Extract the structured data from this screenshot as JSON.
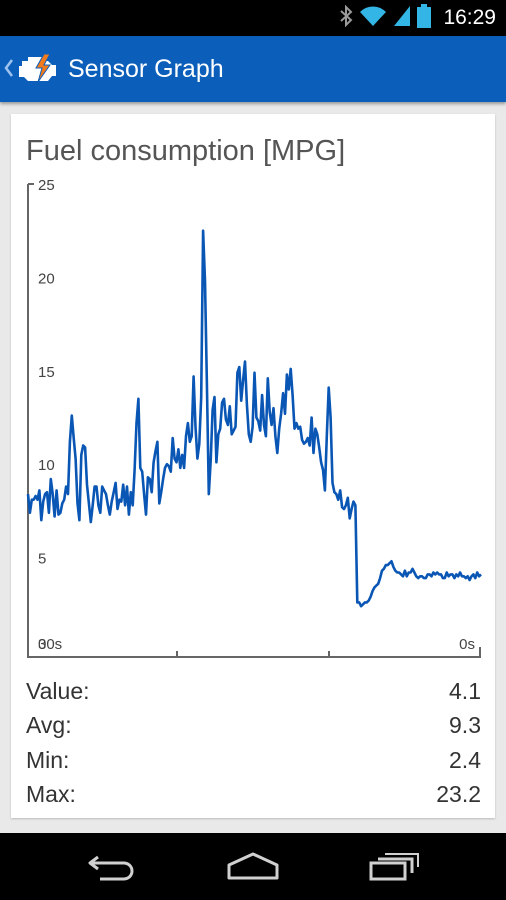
{
  "status_bar": {
    "time": "16:29",
    "icons": [
      "bluetooth-icon",
      "wifi-icon",
      "signal-icon",
      "battery-icon"
    ]
  },
  "action_bar": {
    "title": "Sensor Graph",
    "icon": "check-engine-icon"
  },
  "card": {
    "title": "Fuel consumption [MPG]"
  },
  "chart_data": {
    "type": "line",
    "title": "Fuel consumption [MPG]",
    "ylim": [
      0,
      25
    ],
    "yticks": [
      "0",
      "5",
      "10",
      "15",
      "20",
      "25"
    ],
    "xlim": [
      0,
      30
    ],
    "xtick_labels": [
      "30s",
      "0s"
    ],
    "color": "#0a56b5",
    "series": [
      {
        "values": [
          8.4,
          7.4,
          8.1,
          8.1,
          8.3,
          8.1,
          8.6,
          7.0,
          8.0,
          8.4,
          8.5,
          7.4,
          9.2,
          8.4,
          7.2,
          8.6,
          7.3,
          7.4,
          7.9,
          8.1,
          8.8,
          8.4,
          11.2,
          12.6,
          11.4,
          10.3,
          7.9,
          7.0,
          10.5,
          11.0,
          10.9,
          8.9,
          7.9,
          6.9,
          7.8,
          8.8,
          8.8,
          7.8,
          7.4,
          8.8,
          8.6,
          8.4,
          7.8,
          7.3,
          8.0,
          8.5,
          9.0,
          7.6,
          8.1,
          8.0,
          8.9,
          7.8,
          8.8,
          7.3,
          8.5,
          7.8,
          9.7,
          12.2,
          13.5,
          9.8,
          9.6,
          8.4,
          7.3,
          9.3,
          9.2,
          8.5,
          10.1,
          10.7,
          11.2,
          7.9,
          8.5,
          9.2,
          9.8,
          10.0,
          9.9,
          9.6,
          11.4,
          10.3,
          10.1,
          10.8,
          9.8,
          10.5,
          9.8,
          11.5,
          12.2,
          11.2,
          11.5,
          14.7,
          12.0,
          10.3,
          11.1,
          13.6,
          22.5,
          19.8,
          14.3,
          8.4,
          10.2,
          12.9,
          13.6,
          10.1,
          11.6,
          11.9,
          13.3,
          13.5,
          12.4,
          12.1,
          13.1,
          11.6,
          11.8,
          12.0,
          14.9,
          15.2,
          13.4,
          14.5,
          15.5,
          13.2,
          11.6,
          11.2,
          12.0,
          14.9,
          12.5,
          12.3,
          11.8,
          13.7,
          12.1,
          11.5,
          14.6,
          12.8,
          12.1,
          13.0,
          11.5,
          10.6,
          11.9,
          12.7,
          13.8,
          12.7,
          14.8,
          14.0,
          15.1,
          13.7,
          11.9,
          12.2,
          11.9,
          12.0,
          11.3,
          11.1,
          11.2,
          11.4,
          11.0,
          12.5,
          10.6,
          11.9,
          11.6,
          10.9,
          10.1,
          9.7,
          8.6,
          11.5,
          14.1,
          12.5,
          9.0,
          8.5,
          8.4,
          8.1,
          8.6,
          7.7,
          7.6,
          7.8,
          8.2,
          7.1,
          7.6,
          8.0,
          7.8,
          2.6,
          2.6,
          2.4,
          2.5,
          2.6,
          2.6,
          2.7,
          2.9,
          3.2,
          3.4,
          3.5,
          3.6,
          3.9,
          4.3,
          4.4,
          4.6,
          4.6,
          4.7,
          4.8,
          4.5,
          4.3,
          4.2,
          4.2,
          4.1,
          4.0,
          4.3,
          4.0,
          4.2,
          4.2,
          4.4,
          4.2,
          4.0,
          3.9,
          4.0,
          4.0,
          3.9,
          3.9,
          4.1,
          4.1,
          4.0,
          4.2,
          4.1,
          4.2,
          4.1,
          4.1,
          3.9,
          3.9,
          4.2,
          4.0,
          4.1,
          4.1,
          3.9,
          4.1,
          4.0,
          4.2,
          4.0,
          4.0,
          3.9,
          4.0,
          3.8,
          4.0,
          4.1,
          3.9,
          4.2,
          4.0,
          4.1
        ]
      }
    ]
  },
  "stats": [
    {
      "label": "Value:",
      "value": "4.1"
    },
    {
      "label": "Avg:",
      "value": "9.3"
    },
    {
      "label": "Min:",
      "value": "2.4"
    },
    {
      "label": "Max:",
      "value": "23.2"
    }
  ],
  "nav_bar": {
    "buttons": [
      "back-button",
      "home-button",
      "recent-apps-button"
    ]
  }
}
